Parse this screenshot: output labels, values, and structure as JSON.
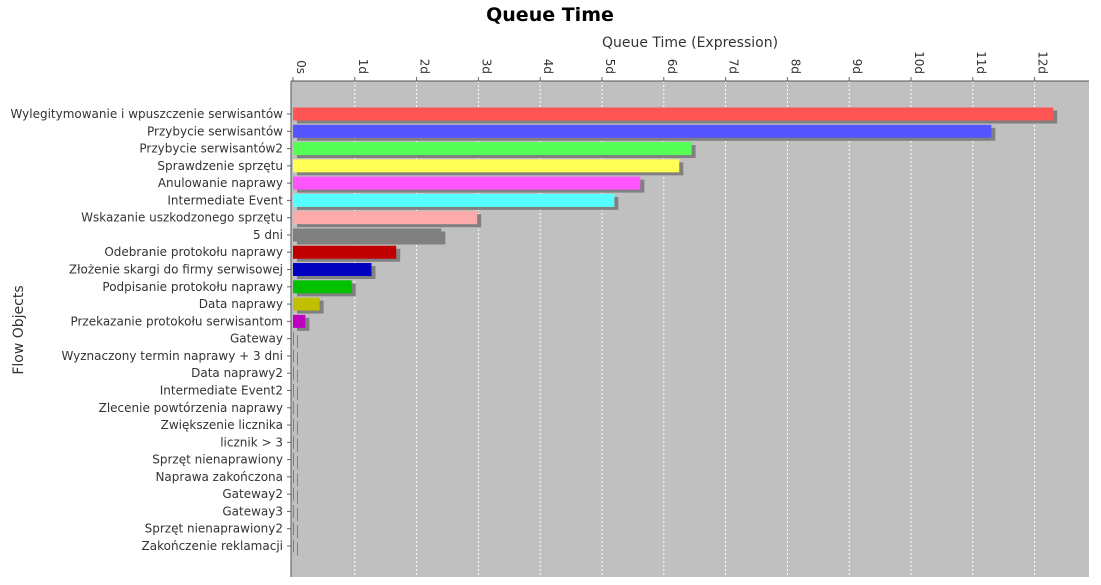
{
  "chart_data": {
    "type": "bar",
    "orientation": "horizontal",
    "title": "Queue Time",
    "xlabel": "Queue Time (Expression)",
    "ylabel": "Flow Objects",
    "x_axis_position": "top",
    "xlim": [
      0,
      13
    ],
    "x_ticks": [
      0,
      1,
      2,
      3,
      4,
      5,
      6,
      7,
      8,
      9,
      10,
      11,
      12
    ],
    "x_tick_labels": [
      "0s",
      "1d",
      "2d",
      "3d",
      "4d",
      "5d",
      "6d",
      "7d",
      "8d",
      "9d",
      "10d",
      "11d",
      "12d"
    ],
    "grid": true,
    "legend": "none",
    "categories": [
      "Wylegitymowanie i wpuszczenie serwisantów",
      "Przybycie serwisantów",
      "Przybycie serwisantów2",
      "Sprawdzenie sprzętu",
      "Anulowanie naprawy",
      "Intermediate Event",
      "Wskazanie uszkodzonego sprzętu",
      "5 dni",
      "Odebranie protokołu naprawy",
      "Złożenie skargi do firmy serwisowej",
      "Podpisanie protokołu naprawy",
      "Data naprawy",
      "Przekazanie protokołu serwisantom",
      "Gateway",
      "Wyznaczony termin naprawy + 3 dni",
      "Data naprawy2",
      "Intermediate Event2",
      "Zlecenie powtórzenia naprawy",
      "Zwiększenie licznika",
      "licznik > 3",
      "Sprzęt nienaprawiony",
      "Naprawa zakończona",
      "Gateway2",
      "Gateway3",
      "Sprzęt nienaprawiony2",
      "Zakończenie reklamacji"
    ],
    "values": [
      12.3,
      11.3,
      6.45,
      6.25,
      5.62,
      5.2,
      2.98,
      2.4,
      1.67,
      1.27,
      0.95,
      0.43,
      0.2,
      0,
      0,
      0,
      0,
      0,
      0,
      0,
      0,
      0,
      0,
      0,
      0,
      0
    ],
    "colors": [
      "#ff5555",
      "#5555ff",
      "#55ff55",
      "#ffff55",
      "#ff55ff",
      "#55ffff",
      "#ffaaaa",
      "#808080",
      "#c00000",
      "#0000c0",
      "#00c000",
      "#c0c000",
      "#c000c0",
      "#808080",
      "#808080",
      "#808080",
      "#808080",
      "#808080",
      "#808080",
      "#808080",
      "#808080",
      "#808080",
      "#808080",
      "#808080",
      "#808080",
      "#808080"
    ],
    "plot_background": "#c0c0c0",
    "shadow_color": "#808080",
    "gridline_color": "#ffffff"
  }
}
